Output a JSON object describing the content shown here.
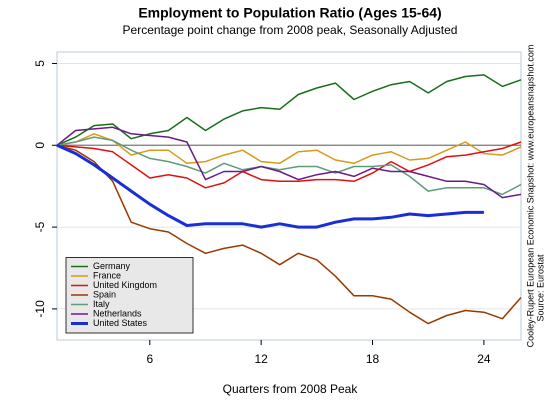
{
  "chart_data": {
    "type": "line",
    "title": "Employment to Population Ratio (Ages 15-64)",
    "subtitle": "Percentage point change from 2008 peak, Seasonally Adjusted",
    "x_label": "Quarters from 2008 Peak",
    "source_lines": [
      "Cooley-Rupert European Economic Snapshot: www.europeansnapshot.com",
      "Source: Eurostat"
    ],
    "x": [
      1,
      2,
      3,
      4,
      5,
      6,
      7,
      8,
      9,
      10,
      11,
      12,
      13,
      14,
      15,
      16,
      17,
      18,
      19,
      20,
      21,
      22,
      23,
      24,
      25,
      26
    ],
    "xlim": [
      1,
      26
    ],
    "xticks": [
      6,
      12,
      18,
      24
    ],
    "ylim": [
      -11.9,
      5.7
    ],
    "yticks": [
      -10,
      -5,
      0,
      5
    ],
    "grid": true,
    "legend": "lower left",
    "series": [
      {
        "name": "Germany",
        "color": "#1a6e1a",
        "values": [
          0,
          0.5,
          1.2,
          1.3,
          0.4,
          0.7,
          0.9,
          1.7,
          0.9,
          1.6,
          2.1,
          2.3,
          2.2,
          3.1,
          3.5,
          3.8,
          2.8,
          3.3,
          3.7,
          3.9,
          3.2,
          3.9,
          4.2,
          4.3,
          3.6,
          4.0
        ]
      },
      {
        "name": "France",
        "color": "#d99a1a",
        "values": [
          0,
          0.2,
          0.7,
          0.3,
          -0.6,
          -0.3,
          -0.3,
          -1.1,
          -1.0,
          -0.6,
          -0.3,
          -1.0,
          -1.1,
          -0.4,
          -0.3,
          -0.9,
          -1.1,
          -0.6,
          -0.4,
          -0.9,
          -0.8,
          -0.3,
          0.2,
          -0.5,
          -0.6,
          -0.1
        ]
      },
      {
        "name": "United Kingdom",
        "color": "#e01010",
        "values": [
          0,
          -0.1,
          -0.2,
          -0.4,
          -1.2,
          -2.0,
          -1.8,
          -2.0,
          -2.6,
          -2.3,
          -1.6,
          -2.1,
          -2.2,
          -2.2,
          -2.1,
          -2.1,
          -2.2,
          -1.7,
          -1.0,
          -1.6,
          -1.2,
          -0.7,
          -0.6,
          -0.4,
          -0.2,
          0.2
        ]
      },
      {
        "name": "Spain",
        "color": "#9a3a00",
        "values": [
          0,
          -0.3,
          -1.0,
          -2.2,
          -4.7,
          -5.1,
          -5.3,
          -6.0,
          -6.6,
          -6.3,
          -6.1,
          -6.6,
          -7.3,
          -6.6,
          -7.0,
          -8.0,
          -9.2,
          -9.2,
          -9.4,
          -10.2,
          -10.9,
          -10.4,
          -10.1,
          -10.2,
          -10.6,
          -9.3
        ]
      },
      {
        "name": "Italy",
        "color": "#5f9c7a",
        "values": [
          0,
          0.2,
          0.5,
          0.3,
          -0.3,
          -0.8,
          -1.0,
          -1.3,
          -1.7,
          -1.1,
          -1.5,
          -1.3,
          -1.5,
          -1.3,
          -1.3,
          -1.7,
          -1.3,
          -1.3,
          -1.2,
          -1.9,
          -2.8,
          -2.6,
          -2.6,
          -2.6,
          -3.0,
          -2.4
        ]
      },
      {
        "name": "Netherlands",
        "color": "#6a1a8a",
        "values": [
          0,
          0.9,
          1.0,
          1.1,
          0.7,
          0.6,
          0.5,
          0.2,
          -2.1,
          -1.6,
          -1.6,
          -1.3,
          -1.6,
          -2.1,
          -1.8,
          -1.6,
          -1.9,
          -1.4,
          -1.6,
          -1.6,
          -1.9,
          -2.2,
          -2.2,
          -2.4,
          -3.2,
          -3.0
        ]
      },
      {
        "name": "United States",
        "color": "#1a2ed8",
        "width": 3,
        "values": [
          0,
          -0.5,
          -1.2,
          -2.0,
          -2.8,
          -3.6,
          -4.3,
          -4.9,
          -4.8,
          -4.8,
          -4.8,
          -5.0,
          -4.8,
          -5.0,
          -5.0,
          -4.7,
          -4.5,
          -4.5,
          -4.4,
          -4.2,
          -4.3,
          -4.2,
          -4.1,
          -4.1,
          null,
          null
        ]
      }
    ]
  }
}
